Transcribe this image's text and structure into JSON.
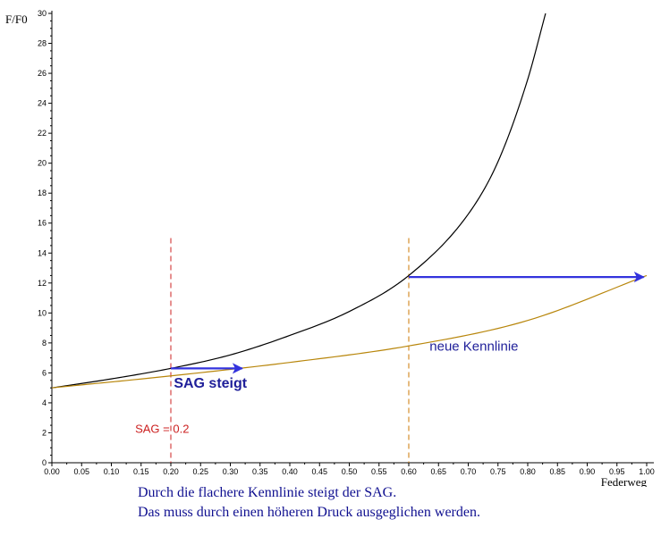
{
  "chart_data": {
    "type": "line",
    "title": "",
    "xlabel": "Federweg",
    "ylabel": "F/F0",
    "xlim": [
      0,
      1
    ],
    "ylim": [
      0,
      30
    ],
    "xticks": [
      "0.00",
      "0.05",
      "0.10",
      "0.15",
      "0.20",
      "0.25",
      "0.30",
      "0.35",
      "0.40",
      "0.45",
      "0.50",
      "0.55",
      "0.60",
      "0.65",
      "0.70",
      "0.75",
      "0.80",
      "0.85",
      "0.90",
      "0.95",
      "1.00"
    ],
    "yticks": [
      "0",
      "2",
      "4",
      "6",
      "8",
      "10",
      "12",
      "14",
      "16",
      "18",
      "20",
      "22",
      "24",
      "26",
      "28",
      "30"
    ],
    "grid": false,
    "legend": "none",
    "series": [
      {
        "color": "#000000",
        "x": [
          0,
          0.1,
          0.2,
          0.3,
          0.4,
          0.5,
          0.6,
          0.7,
          0.75,
          0.8,
          0.83
        ],
        "y": [
          5,
          5.6,
          6.3,
          7.2,
          8.5,
          10.1,
          12.5,
          16.6,
          20.1,
          25.6,
          30
        ]
      },
      {
        "name": "neue Kennlinie",
        "color": "#b8860b",
        "x": [
          0,
          0.2,
          0.4,
          0.6,
          0.8,
          1.0
        ],
        "y": [
          5,
          5.8,
          6.7,
          7.8,
          9.5,
          12.5
        ]
      }
    ],
    "vlines": [
      {
        "x": 0.2,
        "y_to": 15,
        "color": "#cc2222"
      },
      {
        "x": 0.6,
        "y_to": 15,
        "color": "#cc7700"
      }
    ],
    "arrows": [
      {
        "x_from": 0.2,
        "x_to": 0.32,
        "y": 6.3,
        "color": "#3333dd"
      },
      {
        "x_from": 0.6,
        "x_to": 0.995,
        "y": 12.4,
        "color": "#3333dd"
      }
    ],
    "annotations": {
      "sag_arrow": {
        "text": "SAG steigt",
        "x": 0.205,
        "y": 5.0,
        "color": "#20209a",
        "size": 16,
        "weight": "bold"
      },
      "new_curve": {
        "text": "neue Kennlinie",
        "x": 0.635,
        "y": 7.5,
        "color": "#20209a",
        "size": 15,
        "weight": "normal"
      },
      "sag_value": {
        "text": "SAG  =  0.2",
        "x": 0.14,
        "y": 2.0,
        "color": "#cc2222",
        "size": 13,
        "weight": "normal"
      }
    }
  },
  "caption": {
    "line1": "Durch die flachere Kennlinie steigt der SAG.",
    "line2": "Das muss durch einen höheren Druck ausgeglichen werden."
  }
}
